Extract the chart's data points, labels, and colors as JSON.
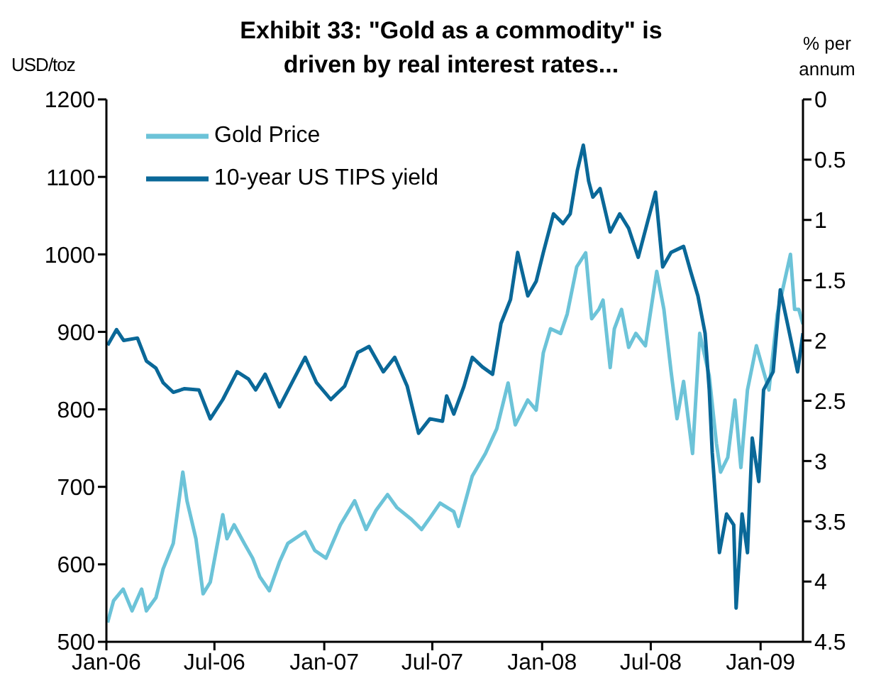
{
  "chart_data": {
    "type": "line",
    "title": "Exhibit 33: \"Gold as a commodity\" is driven by real interest rates...",
    "ylabel": "USD/toz",
    "y2label": "% per annum",
    "xlim": [
      "2006-01-01",
      "2009-03-13"
    ],
    "xticks": [
      {
        "value": "2006-01-01",
        "label": "Jan-06"
      },
      {
        "value": "2006-07-01",
        "label": "Jul-06"
      },
      {
        "value": "2007-01-01",
        "label": "Jan-07"
      },
      {
        "value": "2007-07-01",
        "label": "Jul-07"
      },
      {
        "value": "2008-01-01",
        "label": "Jan-08"
      },
      {
        "value": "2008-07-01",
        "label": "Jul-08"
      },
      {
        "value": "2009-01-01",
        "label": "Jan-09"
      }
    ],
    "ylim": [
      500,
      1200
    ],
    "yticks": [
      500,
      600,
      700,
      800,
      900,
      1000,
      1100,
      1200
    ],
    "y2lim": [
      4.5,
      0
    ],
    "y2ticks": [
      0,
      0.5,
      1,
      1.5,
      2,
      2.5,
      3,
      3.5,
      4,
      4.5
    ],
    "legend": "top left",
    "marker": "none",
    "line_style": "solid",
    "series": [
      {
        "name": "Gold Price",
        "color": "#6cc3d8",
        "x": [
          "2006-01-03",
          "2006-01-13",
          "2006-01-29",
          "2006-02-13",
          "2006-03-01",
          "2006-03-09",
          "2006-03-25",
          "2006-04-06",
          "2006-04-23",
          "2006-05-09",
          "2006-05-16",
          "2006-05-31",
          "2006-06-12",
          "2006-06-24",
          "2006-07-15",
          "2006-07-22",
          "2006-08-03",
          "2006-08-20",
          "2006-09-03",
          "2006-09-15",
          "2006-10-01",
          "2006-10-18",
          "2006-11-01",
          "2006-11-30",
          "2006-12-16",
          "2007-01-04",
          "2007-01-28",
          "2007-02-21",
          "2007-03-12",
          "2007-03-29",
          "2007-04-17",
          "2007-05-03",
          "2007-05-27",
          "2007-06-13",
          "2007-06-27",
          "2007-07-14",
          "2007-08-06",
          "2007-08-14",
          "2007-09-06",
          "2007-09-28",
          "2007-10-17",
          "2007-11-05",
          "2007-11-17",
          "2007-12-08",
          "2007-12-22",
          "2008-01-03",
          "2008-01-15",
          "2008-02-01",
          "2008-02-12",
          "2008-02-28",
          "2008-03-14",
          "2008-03-24",
          "2008-04-05",
          "2008-04-12",
          "2008-04-24",
          "2008-05-01",
          "2008-05-13",
          "2008-05-25",
          "2008-06-06",
          "2008-06-22",
          "2008-07-11",
          "2008-07-23",
          "2008-08-04",
          "2008-08-14",
          "2008-08-25",
          "2008-09-09",
          "2008-09-21",
          "2008-10-07",
          "2008-10-19",
          "2008-10-26",
          "2008-11-07",
          "2008-11-19",
          "2008-11-29",
          "2008-12-10",
          "2008-12-25",
          "2009-01-06",
          "2009-01-15",
          "2009-01-29",
          "2009-02-20",
          "2009-02-27",
          "2009-03-06",
          "2009-03-13"
        ],
        "values": [
          525,
          553,
          568,
          540,
          568,
          540,
          557,
          594,
          627,
          719,
          682,
          633,
          562,
          577,
          664,
          633,
          651,
          627,
          608,
          584,
          566,
          603,
          627,
          642,
          618,
          608,
          651,
          682,
          645,
          670,
          690,
          673,
          658,
          645,
          660,
          679,
          668,
          649,
          714,
          743,
          775,
          834,
          780,
          812,
          799,
          873,
          904,
          898,
          923,
          984,
          1002,
          917,
          929,
          941,
          854,
          904,
          929,
          880,
          898,
          882,
          978,
          929,
          849,
          788,
          836,
          743,
          898,
          843,
          756,
          719,
          738,
          812,
          725,
          825,
          882,
          849,
          825,
          923,
          1000,
          929,
          929,
          910
        ]
      },
      {
        "name": "10-year US TIPS yield",
        "color": "#0a6898",
        "axis": "y2",
        "x": [
          "2006-01-03",
          "2006-01-18",
          "2006-01-30",
          "2006-02-22",
          "2006-03-09",
          "2006-03-25",
          "2006-04-06",
          "2006-04-23",
          "2006-05-12",
          "2006-06-05",
          "2006-06-24",
          "2006-07-15",
          "2006-08-08",
          "2006-08-27",
          "2006-09-08",
          "2006-09-24",
          "2006-10-18",
          "2006-11-11",
          "2006-11-30",
          "2006-12-19",
          "2007-01-12",
          "2007-02-04",
          "2007-02-26",
          "2007-03-17",
          "2007-04-10",
          "2007-04-29",
          "2007-05-20",
          "2007-06-08",
          "2007-06-27",
          "2007-07-18",
          "2007-07-25",
          "2007-08-06",
          "2007-08-23",
          "2007-09-06",
          "2007-09-23",
          "2007-10-10",
          "2007-10-24",
          "2007-11-09",
          "2007-11-21",
          "2007-12-08",
          "2007-12-22",
          "2008-01-03",
          "2008-01-20",
          "2008-02-05",
          "2008-02-17",
          "2008-02-29",
          "2008-03-10",
          "2008-03-19",
          "2008-03-26",
          "2008-04-07",
          "2008-04-24",
          "2008-05-10",
          "2008-05-25",
          "2008-06-10",
          "2008-06-27",
          "2008-07-09",
          "2008-07-21",
          "2008-08-04",
          "2008-08-25",
          "2008-09-06",
          "2008-09-18",
          "2008-09-30",
          "2008-10-07",
          "2008-10-12",
          "2008-10-24",
          "2008-11-05",
          "2008-11-17",
          "2008-11-21",
          "2008-12-01",
          "2008-12-10",
          "2008-12-18",
          "2008-12-29",
          "2009-01-06",
          "2009-01-22",
          "2009-02-03",
          "2009-02-15",
          "2009-03-04",
          "2009-03-13"
        ],
        "values": [
          2.04,
          1.91,
          2.0,
          1.98,
          2.17,
          2.23,
          2.35,
          2.43,
          2.4,
          2.41,
          2.65,
          2.49,
          2.26,
          2.32,
          2.41,
          2.28,
          2.55,
          2.32,
          2.14,
          2.35,
          2.49,
          2.38,
          2.1,
          2.05,
          2.26,
          2.14,
          2.38,
          2.77,
          2.65,
          2.67,
          2.46,
          2.61,
          2.38,
          2.14,
          2.22,
          2.28,
          1.86,
          1.66,
          1.27,
          1.63,
          1.51,
          1.27,
          0.95,
          1.03,
          0.95,
          0.59,
          0.38,
          0.68,
          0.81,
          0.74,
          1.1,
          0.95,
          1.07,
          1.31,
          0.99,
          0.77,
          1.39,
          1.27,
          1.22,
          1.43,
          1.63,
          1.94,
          2.41,
          2.93,
          3.76,
          3.44,
          3.53,
          4.22,
          3.44,
          3.76,
          2.81,
          3.17,
          2.41,
          2.26,
          1.58,
          1.86,
          2.26,
          1.94
        ]
      }
    ]
  }
}
